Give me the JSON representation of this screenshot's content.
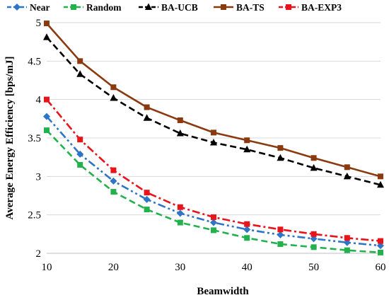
{
  "chart_data": {
    "type": "line",
    "title": "",
    "xlabel": "Beamwidth",
    "ylabel": "Average Energy Efficiency  [bps/mJ]",
    "xlim": [
      10,
      60
    ],
    "ylim": [
      2,
      5
    ],
    "x_ticks": [
      "10",
      "20",
      "30",
      "40",
      "50",
      "60"
    ],
    "y_ticks": [
      "2",
      "2.5",
      "3",
      "3.5",
      "4",
      "4.5",
      "5"
    ],
    "grid": "horizontal",
    "legend_position": "top",
    "x": [
      10,
      15,
      20,
      25,
      30,
      35,
      40,
      45,
      50,
      55,
      60
    ],
    "series": [
      {
        "name": "Near",
        "color": "#2e75c8",
        "marker": "diamond",
        "dash": "dash-dot-dot",
        "values": [
          3.78,
          3.29,
          2.94,
          2.7,
          2.52,
          2.4,
          2.31,
          2.24,
          2.19,
          2.14,
          2.1
        ]
      },
      {
        "name": "Random",
        "color": "#22b14c",
        "marker": "square",
        "dash": "dash",
        "values": [
          3.6,
          3.15,
          2.8,
          2.57,
          2.4,
          2.3,
          2.2,
          2.12,
          2.08,
          2.04,
          2.01
        ]
      },
      {
        "name": "BA-UCB",
        "color": "#000000",
        "marker": "triangle",
        "dash": "dash",
        "values": [
          4.81,
          4.33,
          4.02,
          3.76,
          3.56,
          3.44,
          3.35,
          3.24,
          3.11,
          3.0,
          2.89
        ]
      },
      {
        "name": "BA-TS",
        "color": "#8b3a0f",
        "marker": "square",
        "dash": "solid",
        "values": [
          4.99,
          4.5,
          4.16,
          3.9,
          3.73,
          3.57,
          3.47,
          3.37,
          3.24,
          3.12,
          3.0
        ]
      },
      {
        "name": "BA-EXP3",
        "color": "#e8141c",
        "marker": "square",
        "dash": "dash-dot",
        "values": [
          4.0,
          3.48,
          3.08,
          2.79,
          2.6,
          2.47,
          2.38,
          2.31,
          2.25,
          2.2,
          2.16
        ]
      }
    ]
  }
}
